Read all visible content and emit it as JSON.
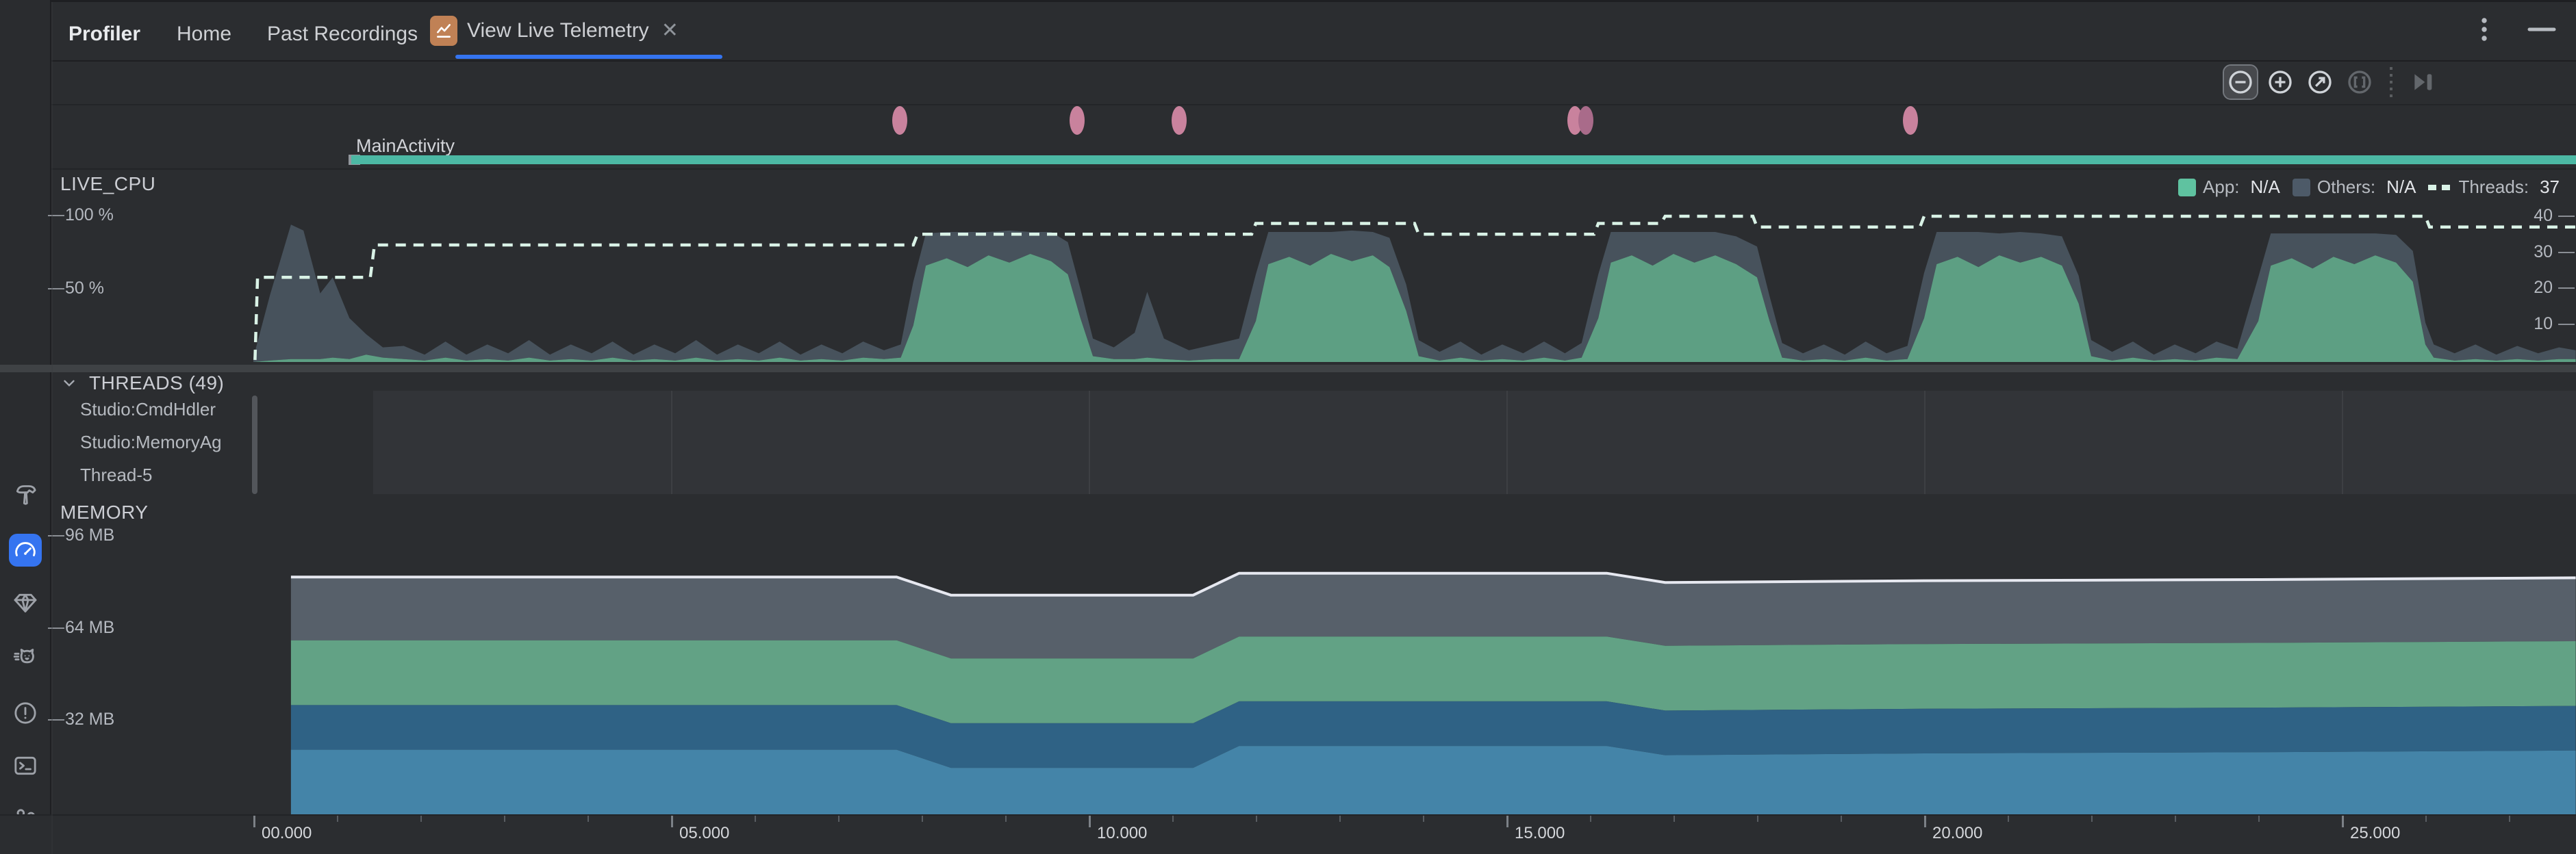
{
  "window": {
    "title": "Profiler",
    "tabs": [
      {
        "label": "Home"
      },
      {
        "label": "Past Recordings"
      },
      {
        "label": "View Live Telemetry",
        "active": true,
        "closeable": true
      }
    ],
    "close_glyph": "✕"
  },
  "sidebar": {
    "icons": [
      "build-hammer-icon",
      "profiler-gauge-icon",
      "app-insights-gem-icon",
      "logcat-cat-icon",
      "problems-warning-icon",
      "terminal-icon",
      "version-control-branch-icon"
    ],
    "active_icon": "profiler-gauge-icon",
    "active_color": "#3574f0"
  },
  "toolbar": {
    "buttons": [
      "zoom-out",
      "zoom-in",
      "zoom-to-fit",
      "reset-zoom",
      "jump-to-live"
    ],
    "highlighted": "zoom-out",
    "disabled": [
      "reset-zoom",
      "jump-to-live"
    ]
  },
  "events": {
    "activity_label": "MainActivity",
    "activity_color": "#4cb8a4",
    "dot_color": "#c9829d",
    "dot_color_back": "#a96b8a"
  },
  "cpu": {
    "title": "LIVE_CPU",
    "y_left": [
      "100 %",
      "50 %"
    ],
    "y_right": [
      "40",
      "30",
      "20",
      "10"
    ],
    "legend": [
      {
        "label": "App:",
        "value": "N/A",
        "swatch": "#5fc2a0"
      },
      {
        "label": "Others:",
        "value": "N/A",
        "swatch": "#4d5a68"
      },
      {
        "label": "Threads:",
        "value": "37",
        "swatch": "dashed"
      }
    ]
  },
  "threads": {
    "header": "THREADS (49)",
    "items": [
      "Studio:CmdHdler",
      "Studio:MemoryAg",
      "Thread-5"
    ]
  },
  "memory": {
    "title": "MEMORY",
    "y_labels": [
      "96 MB",
      "64 MB",
      "32 MB"
    ]
  },
  "timeline": {
    "major_labels": [
      "00.000",
      "05.000",
      "10.000",
      "15.000",
      "20.000",
      "25.000"
    ],
    "seconds_span": 27.8
  },
  "chart_data": [
    {
      "id": "live_cpu",
      "type": "area",
      "title": "LIVE_CPU",
      "stacked": true,
      "x_unit": "seconds",
      "y_unit": "percent",
      "ylim": [
        0,
        100
      ],
      "series_names": [
        "App",
        "Others"
      ],
      "colors": {
        "App": "#5d9f83",
        "Others": "#47525c"
      },
      "legend_position": "top-right",
      "points": [
        [
          0,
          0,
          3
        ],
        [
          0.2,
          1,
          45
        ],
        [
          0.45,
          2,
          92
        ],
        [
          0.6,
          2,
          88
        ],
        [
          0.8,
          2,
          45
        ],
        [
          0.95,
          3,
          55
        ],
        [
          1.15,
          2,
          28
        ],
        [
          1.35,
          5,
          14
        ],
        [
          1.55,
          3,
          7
        ],
        [
          1.8,
          2,
          9
        ],
        [
          2.05,
          1,
          4
        ],
        [
          2.3,
          3,
          11
        ],
        [
          2.55,
          1,
          4
        ],
        [
          2.8,
          2,
          10
        ],
        [
          3.05,
          1,
          5
        ],
        [
          3.3,
          3,
          12
        ],
        [
          3.55,
          1,
          4
        ],
        [
          3.8,
          2,
          10
        ],
        [
          4.05,
          1,
          5
        ],
        [
          4.3,
          3,
          11
        ],
        [
          4.55,
          1,
          4
        ],
        [
          4.8,
          2,
          10
        ],
        [
          5.05,
          1,
          5
        ],
        [
          5.3,
          3,
          12
        ],
        [
          5.55,
          1,
          4
        ],
        [
          5.8,
          2,
          10
        ],
        [
          6.05,
          1,
          5
        ],
        [
          6.3,
          3,
          11
        ],
        [
          6.55,
          1,
          4
        ],
        [
          6.8,
          2,
          10
        ],
        [
          7.05,
          1,
          5
        ],
        [
          7.3,
          3,
          11
        ],
        [
          7.55,
          2,
          6
        ],
        [
          7.75,
          3,
          9
        ],
        [
          7.9,
          25,
          30
        ],
        [
          8.05,
          66,
          22
        ],
        [
          8.3,
          71,
          18
        ],
        [
          8.55,
          65,
          24
        ],
        [
          8.8,
          73,
          16
        ],
        [
          9.05,
          68,
          22
        ],
        [
          9.3,
          74,
          15
        ],
        [
          9.55,
          69,
          20
        ],
        [
          9.75,
          60,
          22
        ],
        [
          9.9,
          30,
          20
        ],
        [
          10.05,
          4,
          12
        ],
        [
          10.3,
          2,
          8
        ],
        [
          10.55,
          2,
          18
        ],
        [
          10.7,
          3,
          45
        ],
        [
          10.9,
          2,
          14
        ],
        [
          11.2,
          1,
          7
        ],
        [
          11.5,
          2,
          10
        ],
        [
          11.8,
          2,
          14
        ],
        [
          12.0,
          28,
          32
        ],
        [
          12.15,
          67,
          22
        ],
        [
          12.4,
          72,
          17
        ],
        [
          12.65,
          66,
          23
        ],
        [
          12.9,
          74,
          15
        ],
        [
          13.15,
          69,
          21
        ],
        [
          13.4,
          73,
          16
        ],
        [
          13.6,
          65,
          20
        ],
        [
          13.8,
          35,
          18
        ],
        [
          13.95,
          4,
          11
        ],
        [
          14.2,
          1,
          6
        ],
        [
          14.45,
          3,
          11
        ],
        [
          14.7,
          1,
          4
        ],
        [
          14.95,
          2,
          10
        ],
        [
          15.2,
          1,
          5
        ],
        [
          15.45,
          3,
          11
        ],
        [
          15.7,
          1,
          5
        ],
        [
          15.9,
          3,
          10
        ],
        [
          16.1,
          30,
          30
        ],
        [
          16.25,
          68,
          21
        ],
        [
          16.5,
          73,
          16
        ],
        [
          16.75,
          66,
          23
        ],
        [
          17.0,
          74,
          15
        ],
        [
          17.25,
          68,
          21
        ],
        [
          17.5,
          73,
          16
        ],
        [
          17.75,
          67,
          19
        ],
        [
          18.0,
          58,
          21
        ],
        [
          18.15,
          28,
          17
        ],
        [
          18.3,
          3,
          10
        ],
        [
          18.55,
          1,
          5
        ],
        [
          18.8,
          2,
          10
        ],
        [
          19.05,
          1,
          4
        ],
        [
          19.3,
          3,
          11
        ],
        [
          19.55,
          1,
          5
        ],
        [
          19.8,
          2,
          9
        ],
        [
          20.0,
          30,
          31
        ],
        [
          20.15,
          67,
          22
        ],
        [
          20.4,
          72,
          17
        ],
        [
          20.65,
          65,
          24
        ],
        [
          20.9,
          73,
          15
        ],
        [
          21.15,
          68,
          21
        ],
        [
          21.4,
          72,
          16
        ],
        [
          21.65,
          66,
          20
        ],
        [
          21.85,
          40,
          19
        ],
        [
          22.0,
          4,
          11
        ],
        [
          22.25,
          1,
          6
        ],
        [
          22.5,
          3,
          11
        ],
        [
          22.75,
          1,
          4
        ],
        [
          23.0,
          2,
          10
        ],
        [
          23.25,
          1,
          5
        ],
        [
          23.5,
          3,
          11
        ],
        [
          23.75,
          2,
          7
        ],
        [
          24.0,
          28,
          30
        ],
        [
          24.15,
          66,
          22
        ],
        [
          24.4,
          71,
          17
        ],
        [
          24.65,
          64,
          24
        ],
        [
          24.9,
          72,
          16
        ],
        [
          25.15,
          67,
          21
        ],
        [
          25.4,
          73,
          15
        ],
        [
          25.65,
          68,
          19
        ],
        [
          25.85,
          55,
          21
        ],
        [
          26.0,
          12,
          15
        ],
        [
          26.1,
          3,
          9
        ],
        [
          26.35,
          1,
          5
        ],
        [
          26.6,
          2,
          10
        ],
        [
          26.85,
          1,
          4
        ],
        [
          27.1,
          2,
          9
        ],
        [
          27.35,
          1,
          5
        ],
        [
          27.6,
          2,
          8
        ],
        [
          27.8,
          2,
          6
        ]
      ]
    },
    {
      "id": "threads_line",
      "type": "line",
      "style": "step-dashed",
      "title": "Threads",
      "current_value": 37,
      "y_axis_ticks": [
        40,
        30,
        20,
        10
      ],
      "color": "#d9f2e6",
      "points": [
        [
          0.02,
          0
        ],
        [
          0.05,
          23
        ],
        [
          1.4,
          23
        ],
        [
          1.45,
          32
        ],
        [
          7.9,
          32
        ],
        [
          7.95,
          35
        ],
        [
          11.95,
          35
        ],
        [
          12.0,
          38
        ],
        [
          13.9,
          38
        ],
        [
          13.95,
          35
        ],
        [
          16.05,
          35
        ],
        [
          16.1,
          38
        ],
        [
          16.85,
          38
        ],
        [
          16.9,
          40
        ],
        [
          17.95,
          40
        ],
        [
          18.0,
          37
        ],
        [
          19.95,
          37
        ],
        [
          20.0,
          40
        ],
        [
          26.0,
          40
        ],
        [
          26.05,
          37
        ],
        [
          27.8,
          37
        ]
      ]
    },
    {
      "id": "memory",
      "type": "area",
      "title": "MEMORY",
      "stacked": true,
      "x_unit": "seconds",
      "y_unit": "MB",
      "y_ticks": [
        96,
        64,
        32
      ],
      "total_line_color": "#e6e8f0",
      "total_mb": [
        [
          0.45,
          81.5
        ],
        [
          7.7,
          81.5
        ],
        [
          8.35,
          75.2
        ],
        [
          11.25,
          75.2
        ],
        [
          11.8,
          82.8
        ],
        [
          16.2,
          82.8
        ],
        [
          16.9,
          79.6
        ],
        [
          20.0,
          80.2
        ],
        [
          24.0,
          80.6
        ],
        [
          27.8,
          81.2
        ]
      ],
      "bands_top_to_bottom": [
        {
          "name": "band-gray",
          "thickness_mb": 22.0,
          "color": "#57606a"
        },
        {
          "name": "band-green",
          "thickness_mb": 22.5,
          "color": "#62a285"
        },
        {
          "name": "band-darkblue",
          "thickness_mb": 15.5,
          "color": "#2f6285"
        },
        {
          "name": "band-lightblue",
          "thickness_mb": "remainder",
          "color": "#4484a8"
        }
      ]
    },
    {
      "id": "event_dots",
      "type": "scatter",
      "title": "Activity events",
      "times_seconds": [
        7.74,
        9.86,
        11.08,
        15.82,
        15.95,
        19.84
      ]
    }
  ]
}
